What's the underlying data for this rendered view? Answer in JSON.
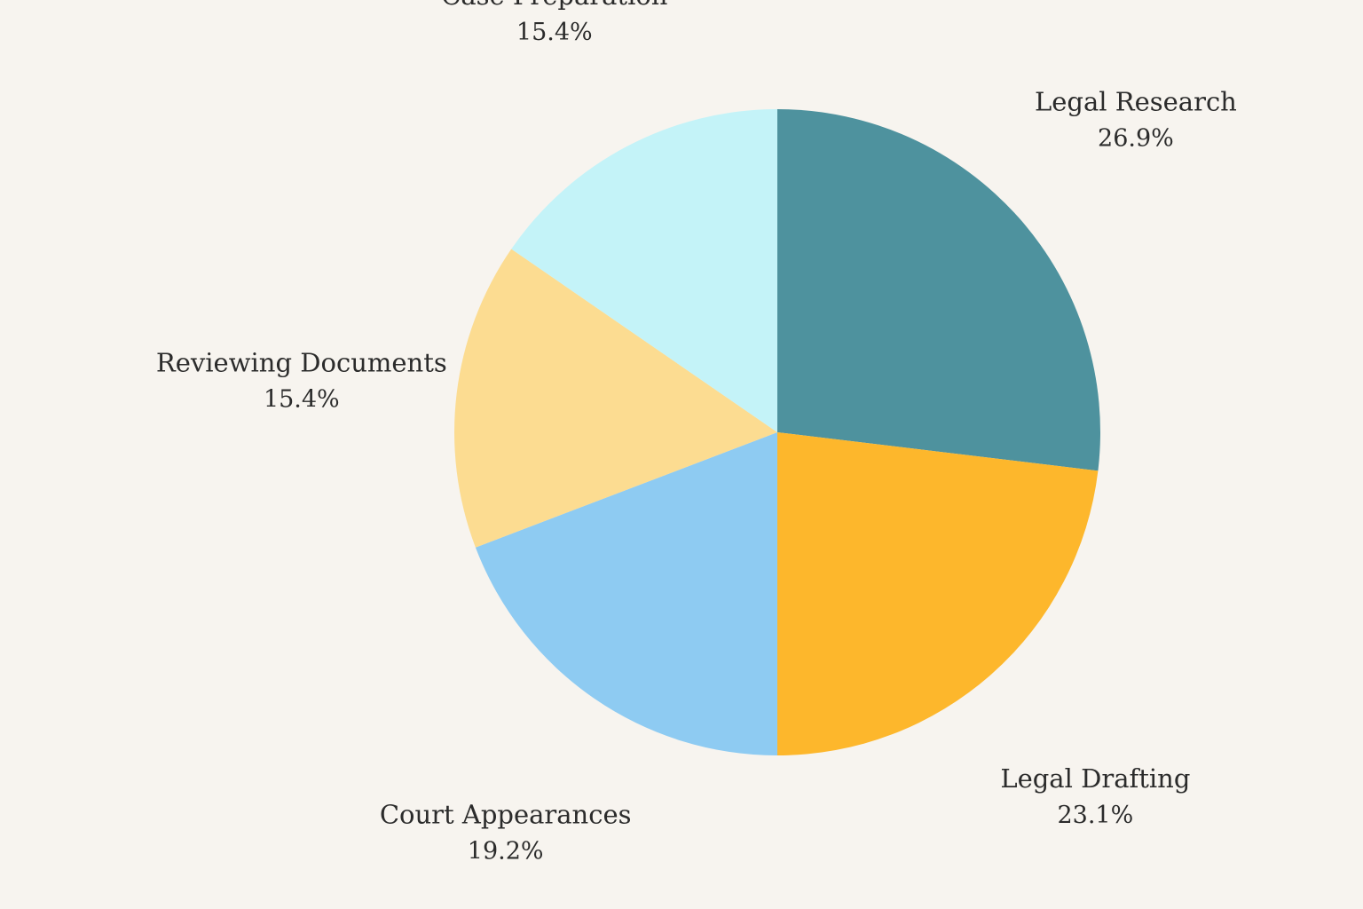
{
  "chart_data": {
    "type": "pie",
    "title": "",
    "start_angle": "12 o'clock",
    "direction": "clockwise",
    "slices": [
      {
        "label": "Legal Research",
        "percent_label": "26.9%",
        "value": 26.9,
        "color": "#4e929e"
      },
      {
        "label": "Legal Drafting",
        "percent_label": "23.1%",
        "value": 23.1,
        "color": "#fdb72c"
      },
      {
        "label": "Court Appearances",
        "percent_label": "19.2%",
        "value": 19.2,
        "color": "#8ecbf2"
      },
      {
        "label": "Reviewing Documents",
        "percent_label": "15.4%",
        "value": 15.4,
        "color": "#fcdc91"
      },
      {
        "label": "Case Preparation",
        "percent_label": "15.4%",
        "value": 15.4,
        "color": "#c4f3f8"
      }
    ]
  }
}
